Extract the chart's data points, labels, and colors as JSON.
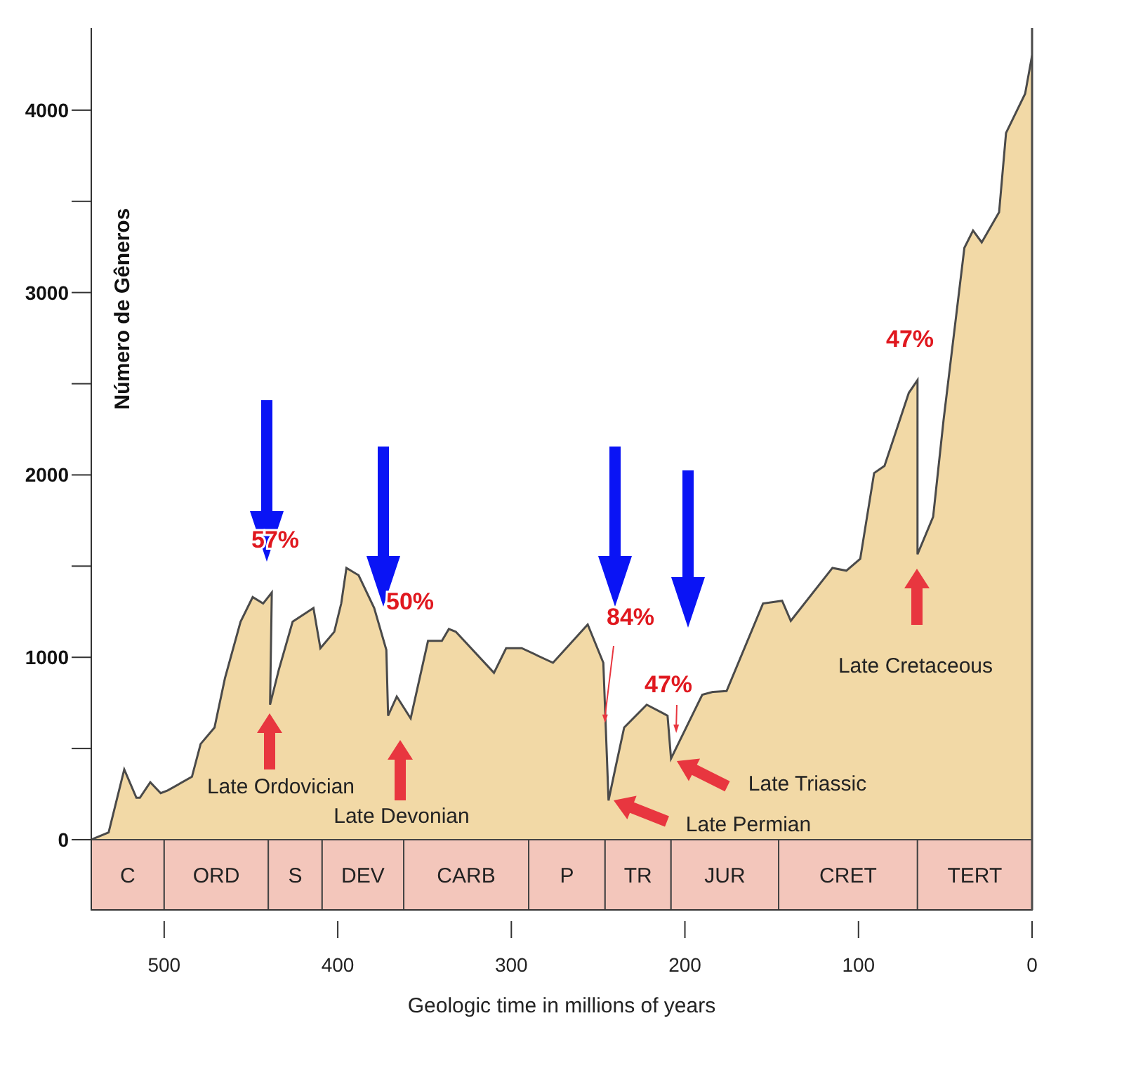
{
  "chart_data": {
    "type": "area",
    "ylabel": "Número de Gêneros",
    "xlabel": "Geologic time in millions of years",
    "xlim": [
      542,
      0
    ],
    "xticks": [
      500,
      400,
      300,
      200,
      100,
      0
    ],
    "ylim": [
      -385,
      4450
    ],
    "yticks": [
      0,
      {
        "value": 500,
        "label": null
      },
      1000,
      {
        "value": 1500,
        "label": null
      },
      2000,
      {
        "value": 2500,
        "label": null
      },
      3000,
      {
        "value": 3500,
        "label": null
      },
      4000
    ],
    "x": [
      542,
      532,
      523,
      516,
      514,
      508,
      502,
      498,
      484,
      479,
      471,
      465,
      456,
      449,
      443,
      438,
      439,
      434,
      426,
      414,
      410,
      402,
      398,
      395,
      388,
      379,
      372,
      371,
      366,
      363,
      358,
      348,
      340,
      336,
      332,
      310,
      303,
      294,
      276,
      256,
      247,
      244,
      240,
      235,
      222,
      213,
      210,
      208,
      190,
      184,
      176,
      155,
      144,
      139,
      115,
      107,
      99,
      91,
      85,
      71,
      66,
      66,
      57,
      51,
      39,
      34,
      29,
      19,
      15,
      4,
      0
    ],
    "series": [
      {
        "color": "#f2d9a6",
        "values": [
          0,
          40,
          385,
          230,
          230,
          315,
          255,
          270,
          345,
          525,
          615,
          885,
          1195,
          1330,
          1295,
          1355,
          740,
          930,
          1195,
          1270,
          1050,
          1140,
          1295,
          1490,
          1450,
          1270,
          1040,
          680,
          785,
          740,
          665,
          1090,
          1090,
          1155,
          1140,
          915,
          1050,
          1050,
          970,
          1180,
          970,
          215,
          395,
          615,
          740,
          695,
          680,
          445,
          795,
          810,
          815,
          1295,
          1310,
          1200,
          1490,
          1475,
          1540,
          2010,
          2050,
          2450,
          2520,
          1565,
          1770,
          2300,
          3245,
          3340,
          3275,
          3440,
          3875,
          4090,
          4300
        ]
      }
    ],
    "bands": [
      {
        "axis": "x",
        "from": 542,
        "to": 500,
        "label": "C",
        "color": "#f3c6bb"
      },
      {
        "axis": "x",
        "from": 500,
        "to": 440,
        "label": "ORD",
        "color": "#f3c6bb"
      },
      {
        "axis": "x",
        "from": 440,
        "to": 409,
        "label": "S",
        "color": "#f3c6bb"
      },
      {
        "axis": "x",
        "from": 409,
        "to": 362,
        "label": "DEV",
        "color": "#f3c6bb"
      },
      {
        "axis": "x",
        "from": 362,
        "to": 290,
        "label": "CARB",
        "color": "#f3c6bb"
      },
      {
        "axis": "x",
        "from": 290,
        "to": 246,
        "label": "P",
        "color": "#f3c6bb"
      },
      {
        "axis": "x",
        "from": 246,
        "to": 208,
        "label": "TR",
        "color": "#f3c6bb"
      },
      {
        "axis": "x",
        "from": 208,
        "to": 146,
        "label": "JUR",
        "color": "#f3c6bb"
      },
      {
        "axis": "x",
        "from": 146,
        "to": 66,
        "label": "CRET",
        "color": "#f3c6bb"
      },
      {
        "axis": "x",
        "from": 66,
        "to": 0,
        "label": "TERT",
        "color": "#f3c6bb"
      }
    ],
    "annotations": [
      "57%",
      "50%",
      {
        "text": "84%",
        "x": 246,
        "y": 640
      },
      {
        "text": "47%",
        "x": 205,
        "y": 585
      },
      "47%",
      "Late Ordovician",
      "Late Devonian",
      "Late Permian",
      "Late Triassic",
      "Late Cretaceous"
    ]
  }
}
